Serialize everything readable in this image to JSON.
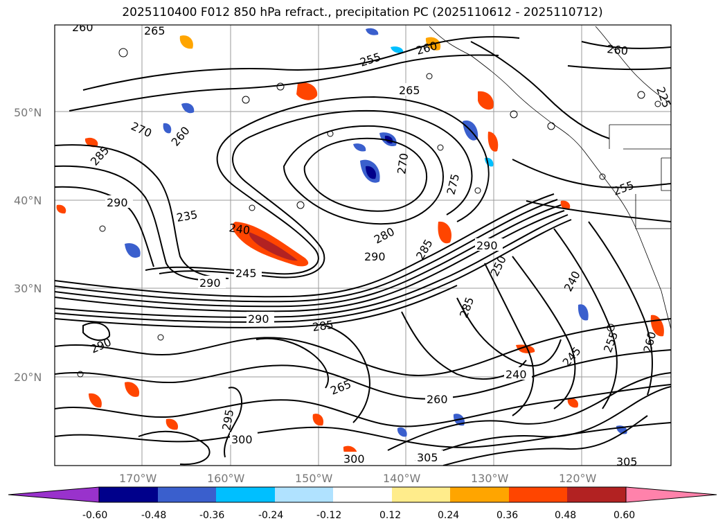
{
  "title": "2025110400 F012 850 hPa refract., precipitation PC (2025110612 - 2025110712)",
  "latitude_labels": [
    "50°N",
    "40°N",
    "30°N",
    "20°N"
  ],
  "longitude_labels": [
    "170°W",
    "160°W",
    "150°W",
    "140°W",
    "130°W",
    "120°W"
  ],
  "contour_labels": [
    "260",
    "265",
    "255",
    "260",
    "265",
    "260",
    "270",
    "260",
    "285",
    "290",
    "235",
    "240",
    "245",
    "290",
    "280",
    "290",
    "285",
    "275",
    "270",
    "290",
    "250",
    "240",
    "245",
    "255",
    "260",
    "290",
    "285",
    "295",
    "300",
    "265",
    "260",
    "305",
    "300",
    "305",
    "240",
    "290",
    "255",
    "285",
    "225"
  ],
  "colorbar": {
    "ticks": [
      "-0.60",
      "-0.48",
      "-0.36",
      "-0.24",
      "-0.12",
      "0.12",
      "0.24",
      "0.36",
      "0.48",
      "0.60"
    ],
    "colors": {
      "lt_-0.60": "#9932cc",
      "-0.60_-0.48": "#00008b",
      "-0.48_-0.36": "#3a5fcd",
      "-0.36_-0.24": "#00bfff",
      "-0.24_-0.12": "#b0e2ff",
      "-0.12_0.12": "#ffffff",
      "0.12_0.24": "#ffec8b",
      "0.24_0.36": "#ffa500",
      "0.36_0.48": "#ff4500",
      "0.48_0.60": "#b22222",
      "gt_0.60": "#ff82ab"
    }
  }
}
